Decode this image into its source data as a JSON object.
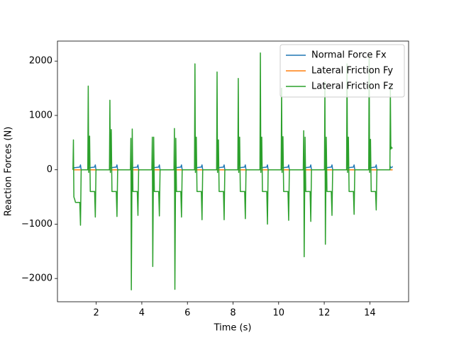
{
  "chart_data": {
    "type": "line",
    "xlabel": "Time (s)",
    "ylabel": "Reaction Forces (N)",
    "xlim": [
      0.3,
      15.7
    ],
    "ylim": [
      -2428,
      2368
    ],
    "xticks": [
      2,
      4,
      6,
      8,
      10,
      12,
      14
    ],
    "yticks": [
      {
        "value": -2000,
        "label": "−2000"
      },
      {
        "value": -1000,
        "label": "−1000"
      },
      0,
      1000,
      2000
    ],
    "legend": "upper right",
    "x": [
      0.98,
      1.0,
      1.02,
      1.06,
      1.09,
      1.28,
      1.31,
      1.34,
      1.63,
      1.65,
      1.67,
      1.71,
      1.74,
      1.93,
      1.96,
      1.99,
      2.58,
      2.6,
      2.62,
      2.66,
      2.69,
      2.88,
      2.91,
      2.94,
      3.5,
      3.52,
      3.54,
      3.58,
      3.61,
      3.8,
      3.83,
      3.86,
      4.44,
      4.46,
      4.48,
      4.52,
      4.55,
      4.74,
      4.77,
      4.8,
      5.41,
      5.43,
      5.45,
      5.49,
      5.52,
      5.71,
      5.74,
      5.77,
      6.31,
      6.33,
      6.35,
      6.39,
      6.42,
      6.61,
      6.64,
      6.67,
      7.28,
      7.3,
      7.32,
      7.36,
      7.39,
      7.58,
      7.61,
      7.64,
      8.21,
      8.23,
      8.25,
      8.29,
      8.32,
      8.51,
      8.54,
      8.57,
      9.18,
      9.2,
      9.22,
      9.26,
      9.29,
      9.48,
      9.51,
      9.54,
      10.11,
      10.13,
      10.15,
      10.19,
      10.22,
      10.41,
      10.44,
      10.47,
      11.08,
      11.1,
      11.12,
      11.16,
      11.19,
      11.38,
      11.41,
      11.44,
      12.01,
      12.03,
      12.05,
      12.09,
      12.12,
      12.31,
      12.34,
      12.37,
      12.98,
      13.0,
      13.02,
      13.06,
      13.09,
      13.28,
      13.31,
      13.34,
      13.95,
      13.97,
      13.99,
      14.03,
      14.06,
      14.25,
      14.28,
      14.31,
      14.88,
      14.9,
      14.92,
      14.94,
      14.96,
      14.98,
      14.99,
      15.0
    ],
    "series": [
      {
        "name": "Normal Force Fx",
        "color": "#1f77b4",
        "values": [
          0,
          60,
          30,
          40,
          40,
          50,
          90,
          0,
          0,
          60,
          30,
          40,
          40,
          50,
          90,
          0,
          0,
          60,
          30,
          40,
          40,
          50,
          90,
          0,
          0,
          60,
          30,
          40,
          40,
          50,
          90,
          0,
          0,
          60,
          30,
          40,
          40,
          50,
          90,
          0,
          0,
          60,
          30,
          40,
          40,
          50,
          90,
          0,
          0,
          60,
          30,
          40,
          40,
          50,
          90,
          0,
          0,
          60,
          30,
          40,
          40,
          50,
          90,
          0,
          0,
          60,
          30,
          40,
          40,
          50,
          90,
          0,
          0,
          60,
          30,
          40,
          40,
          50,
          90,
          0,
          0,
          60,
          30,
          40,
          40,
          50,
          90,
          0,
          0,
          60,
          30,
          40,
          40,
          50,
          90,
          0,
          0,
          60,
          30,
          40,
          40,
          50,
          90,
          0,
          0,
          60,
          30,
          40,
          40,
          50,
          90,
          0,
          0,
          60,
          30,
          40,
          40,
          50,
          90,
          0,
          0,
          60,
          40,
          40,
          40,
          50,
          60,
          60
        ]
      },
      {
        "name": "Lateral Friction Fy",
        "color": "#ff7f0e",
        "values": [
          0,
          0,
          0,
          0,
          0,
          0,
          0,
          0,
          0,
          0,
          0,
          0,
          0,
          0,
          0,
          0,
          0,
          0,
          0,
          0,
          0,
          0,
          0,
          0,
          0,
          0,
          0,
          0,
          0,
          0,
          0,
          0,
          0,
          0,
          0,
          0,
          0,
          0,
          0,
          0,
          0,
          0,
          0,
          0,
          0,
          0,
          0,
          0,
          0,
          0,
          0,
          0,
          0,
          0,
          0,
          0,
          0,
          0,
          0,
          0,
          0,
          0,
          0,
          0,
          0,
          0,
          0,
          0,
          0,
          0,
          0,
          0,
          0,
          0,
          0,
          0,
          0,
          0,
          0,
          0,
          0,
          0,
          0,
          0,
          0,
          0,
          0,
          0,
          0,
          0,
          0,
          0,
          0,
          0,
          0,
          0,
          0,
          0,
          0,
          0,
          0,
          0,
          0,
          0,
          0,
          0,
          0,
          0,
          0,
          0,
          0,
          0,
          0,
          0,
          0,
          0,
          0,
          0,
          0,
          0,
          0,
          0,
          0,
          0,
          0,
          0,
          0,
          0
        ]
      },
      {
        "name": "Lateral Friction Fz",
        "color": "#2ca02c",
        "values": [
          0,
          550,
          -500,
          -550,
          -600,
          -600,
          -1020,
          0,
          0,
          1540,
          -50,
          620,
          -400,
          -400,
          -870,
          0,
          0,
          1280,
          -50,
          740,
          -400,
          -400,
          -860,
          0,
          0,
          580,
          -2210,
          750,
          -400,
          -400,
          -840,
          0,
          0,
          600,
          -1780,
          600,
          -400,
          -400,
          -850,
          0,
          0,
          760,
          -2200,
          580,
          -400,
          -400,
          -870,
          0,
          0,
          1950,
          -50,
          600,
          -400,
          -400,
          -920,
          0,
          0,
          1800,
          -50,
          550,
          -400,
          -400,
          -920,
          0,
          0,
          1680,
          -50,
          600,
          -400,
          -400,
          -900,
          0,
          0,
          2150,
          -50,
          600,
          -400,
          -400,
          -1000,
          0,
          0,
          1500,
          -50,
          610,
          -400,
          -400,
          -930,
          0,
          0,
          720,
          -1600,
          600,
          -400,
          -400,
          -950,
          0,
          0,
          1620,
          -1370,
          600,
          -400,
          -400,
          -840,
          0,
          0,
          1950,
          -50,
          600,
          -400,
          -400,
          -820,
          0,
          0,
          2080,
          -50,
          560,
          -400,
          -400,
          -740,
          0,
          0,
          1510,
          380,
          420,
          400,
          400,
          400,
          400
        ]
      }
    ]
  }
}
